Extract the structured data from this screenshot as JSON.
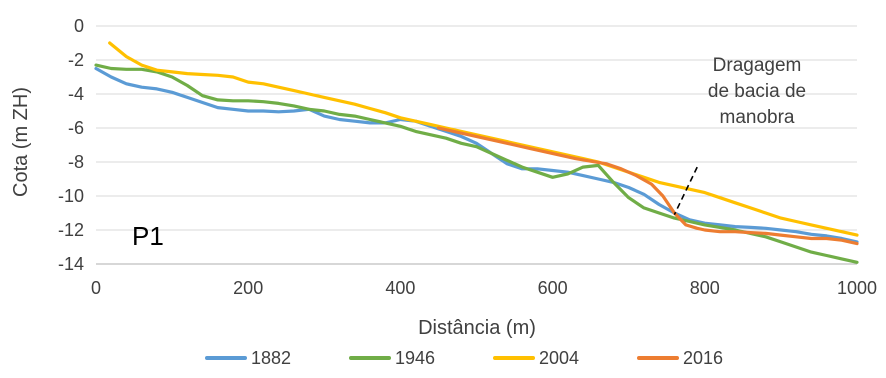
{
  "chart_data": {
    "type": "line",
    "xlabel": "Distância (m)",
    "ylabel": "Cota (m ZH)",
    "xlim": [
      0,
      1000
    ],
    "ylim": [
      -14,
      0
    ],
    "x_ticks": [
      "0",
      "200",
      "400",
      "600",
      "800",
      "1000"
    ],
    "y_ticks": [
      "0",
      "-2",
      "-4",
      "-6",
      "-8",
      "-10",
      "-12",
      "-14"
    ],
    "grid": "horizontal",
    "legend_position": "bottom",
    "panel_label": "P1",
    "annotation": {
      "text_lines": [
        "Dragagem",
        "de bacia de",
        "manobra"
      ],
      "arrow_from": [
        790,
        -8.3
      ],
      "arrow_to": [
        760,
        -11.1
      ]
    },
    "series": [
      {
        "name": "1882",
        "color": "#5B9BD5",
        "points": [
          [
            0,
            -2.5
          ],
          [
            20,
            -3.0
          ],
          [
            40,
            -3.4
          ],
          [
            60,
            -3.6
          ],
          [
            80,
            -3.7
          ],
          [
            100,
            -3.9
          ],
          [
            120,
            -4.2
          ],
          [
            140,
            -4.5
          ],
          [
            160,
            -4.8
          ],
          [
            180,
            -4.9
          ],
          [
            200,
            -5.0
          ],
          [
            220,
            -5.0
          ],
          [
            240,
            -5.05
          ],
          [
            260,
            -5.0
          ],
          [
            280,
            -4.9
          ],
          [
            300,
            -5.3
          ],
          [
            320,
            -5.5
          ],
          [
            340,
            -5.6
          ],
          [
            360,
            -5.7
          ],
          [
            380,
            -5.7
          ],
          [
            400,
            -5.5
          ],
          [
            420,
            -5.6
          ],
          [
            440,
            -5.9
          ],
          [
            460,
            -6.2
          ],
          [
            480,
            -6.5
          ],
          [
            500,
            -6.9
          ],
          [
            520,
            -7.5
          ],
          [
            540,
            -8.1
          ],
          [
            560,
            -8.4
          ],
          [
            580,
            -8.4
          ],
          [
            600,
            -8.5
          ],
          [
            620,
            -8.6
          ],
          [
            640,
            -8.8
          ],
          [
            660,
            -9.0
          ],
          [
            680,
            -9.2
          ],
          [
            700,
            -9.5
          ],
          [
            720,
            -9.9
          ],
          [
            740,
            -10.5
          ],
          [
            760,
            -11.0
          ],
          [
            780,
            -11.4
          ],
          [
            800,
            -11.6
          ],
          [
            820,
            -11.7
          ],
          [
            840,
            -11.8
          ],
          [
            860,
            -11.85
          ],
          [
            880,
            -11.9
          ],
          [
            900,
            -12.0
          ],
          [
            920,
            -12.1
          ],
          [
            940,
            -12.25
          ],
          [
            960,
            -12.35
          ],
          [
            980,
            -12.5
          ],
          [
            1000,
            -12.7
          ]
        ]
      },
      {
        "name": "1946",
        "color": "#70AD47",
        "points": [
          [
            0,
            -2.3
          ],
          [
            20,
            -2.5
          ],
          [
            40,
            -2.55
          ],
          [
            60,
            -2.55
          ],
          [
            80,
            -2.7
          ],
          [
            100,
            -3.0
          ],
          [
            120,
            -3.5
          ],
          [
            140,
            -4.1
          ],
          [
            160,
            -4.35
          ],
          [
            180,
            -4.4
          ],
          [
            200,
            -4.4
          ],
          [
            220,
            -4.45
          ],
          [
            240,
            -4.55
          ],
          [
            260,
            -4.7
          ],
          [
            280,
            -4.9
          ],
          [
            300,
            -5.0
          ],
          [
            320,
            -5.2
          ],
          [
            340,
            -5.3
          ],
          [
            360,
            -5.5
          ],
          [
            380,
            -5.7
          ],
          [
            400,
            -5.9
          ],
          [
            420,
            -6.2
          ],
          [
            440,
            -6.4
          ],
          [
            460,
            -6.6
          ],
          [
            480,
            -6.9
          ],
          [
            500,
            -7.1
          ],
          [
            520,
            -7.5
          ],
          [
            540,
            -7.9
          ],
          [
            560,
            -8.3
          ],
          [
            580,
            -8.6
          ],
          [
            600,
            -8.9
          ],
          [
            620,
            -8.7
          ],
          [
            640,
            -8.3
          ],
          [
            660,
            -8.2
          ],
          [
            680,
            -9.2
          ],
          [
            700,
            -10.1
          ],
          [
            720,
            -10.7
          ],
          [
            740,
            -11.0
          ],
          [
            760,
            -11.3
          ],
          [
            780,
            -11.5
          ],
          [
            800,
            -11.7
          ],
          [
            820,
            -11.85
          ],
          [
            840,
            -12.0
          ],
          [
            860,
            -12.2
          ],
          [
            880,
            -12.4
          ],
          [
            900,
            -12.7
          ],
          [
            920,
            -13.0
          ],
          [
            940,
            -13.3
          ],
          [
            960,
            -13.5
          ],
          [
            980,
            -13.7
          ],
          [
            1000,
            -13.9
          ]
        ]
      },
      {
        "name": "2004",
        "color": "#FFC000",
        "points": [
          [
            18,
            -1.0
          ],
          [
            40,
            -1.8
          ],
          [
            60,
            -2.3
          ],
          [
            80,
            -2.6
          ],
          [
            100,
            -2.7
          ],
          [
            120,
            -2.8
          ],
          [
            140,
            -2.85
          ],
          [
            160,
            -2.9
          ],
          [
            180,
            -3.0
          ],
          [
            200,
            -3.3
          ],
          [
            220,
            -3.4
          ],
          [
            240,
            -3.6
          ],
          [
            260,
            -3.8
          ],
          [
            280,
            -4.0
          ],
          [
            300,
            -4.2
          ],
          [
            320,
            -4.4
          ],
          [
            340,
            -4.6
          ],
          [
            360,
            -4.85
          ],
          [
            380,
            -5.1
          ],
          [
            400,
            -5.4
          ],
          [
            420,
            -5.6
          ],
          [
            440,
            -5.8
          ],
          [
            460,
            -6.0
          ],
          [
            480,
            -6.2
          ],
          [
            500,
            -6.4
          ],
          [
            520,
            -6.6
          ],
          [
            540,
            -6.8
          ],
          [
            560,
            -7.0
          ],
          [
            580,
            -7.2
          ],
          [
            600,
            -7.4
          ],
          [
            620,
            -7.6
          ],
          [
            640,
            -7.8
          ],
          [
            660,
            -8.0
          ],
          [
            680,
            -8.3
          ],
          [
            700,
            -8.6
          ],
          [
            720,
            -8.9
          ],
          [
            740,
            -9.2
          ],
          [
            760,
            -9.4
          ],
          [
            780,
            -9.6
          ],
          [
            800,
            -9.8
          ],
          [
            820,
            -10.1
          ],
          [
            840,
            -10.4
          ],
          [
            860,
            -10.7
          ],
          [
            880,
            -11.0
          ],
          [
            900,
            -11.3
          ],
          [
            920,
            -11.5
          ],
          [
            940,
            -11.7
          ],
          [
            960,
            -11.9
          ],
          [
            980,
            -12.1
          ],
          [
            1000,
            -12.3
          ]
        ]
      },
      {
        "name": "2016",
        "color": "#ED7D31",
        "points": [
          [
            450,
            -6.0
          ],
          [
            470,
            -6.2
          ],
          [
            490,
            -6.4
          ],
          [
            510,
            -6.6
          ],
          [
            530,
            -6.8
          ],
          [
            550,
            -7.0
          ],
          [
            570,
            -7.2
          ],
          [
            590,
            -7.4
          ],
          [
            610,
            -7.6
          ],
          [
            630,
            -7.8
          ],
          [
            650,
            -7.95
          ],
          [
            670,
            -8.1
          ],
          [
            690,
            -8.4
          ],
          [
            710,
            -8.8
          ],
          [
            730,
            -9.3
          ],
          [
            745,
            -10.0
          ],
          [
            760,
            -11.0
          ],
          [
            775,
            -11.7
          ],
          [
            790,
            -11.9
          ],
          [
            800,
            -12.0
          ],
          [
            820,
            -12.1
          ],
          [
            840,
            -12.1
          ],
          [
            860,
            -12.15
          ],
          [
            880,
            -12.2
          ],
          [
            900,
            -12.3
          ],
          [
            920,
            -12.4
          ],
          [
            940,
            -12.5
          ],
          [
            960,
            -12.5
          ],
          [
            980,
            -12.6
          ],
          [
            1000,
            -12.8
          ]
        ]
      }
    ]
  }
}
